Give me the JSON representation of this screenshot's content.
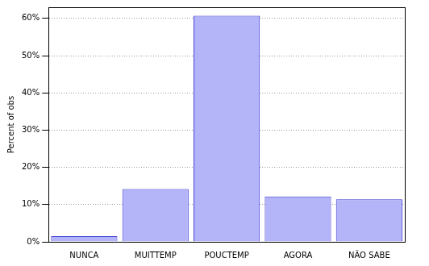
{
  "chart_data": {
    "type": "bar",
    "y_label": "Percent of obs",
    "categories": [
      "NUNCA",
      "MUITTEMP",
      "POUCTEMP",
      "AGORA",
      "NÃO SABE"
    ],
    "values": [
      1.5,
      14.2,
      60.7,
      12.2,
      11.4
    ],
    "color": "#b4b4f8",
    "ylim": [
      0,
      63
    ],
    "yticks": [
      {
        "value": 0,
        "label": "0%"
      },
      {
        "value": 10,
        "label": "10%"
      },
      {
        "value": 20,
        "label": "20%"
      },
      {
        "value": 30,
        "label": "30%"
      },
      {
        "value": 40,
        "label": "40%"
      },
      {
        "value": 50,
        "label": "50%"
      },
      {
        "value": 60,
        "label": "60%"
      }
    ],
    "grid": true
  }
}
